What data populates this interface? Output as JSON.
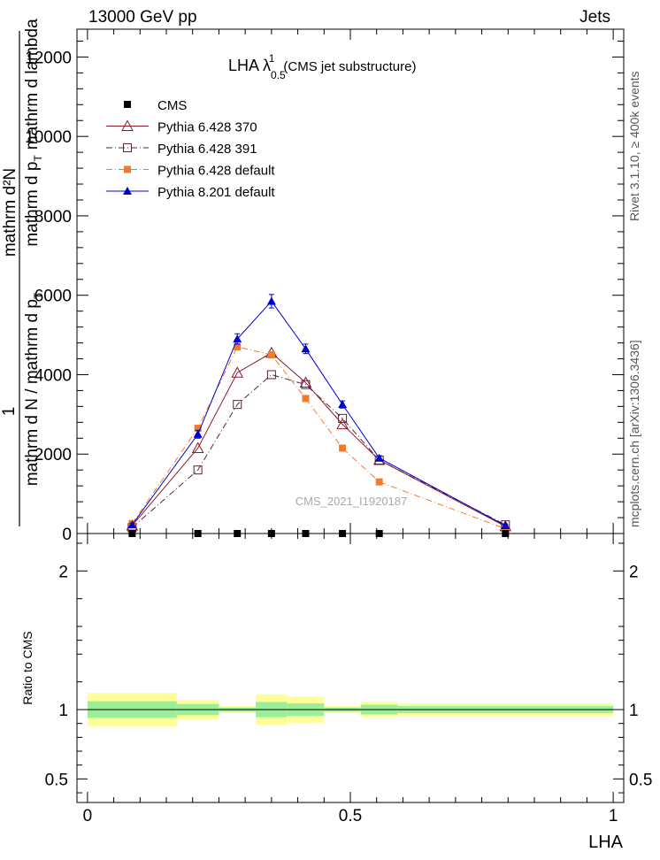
{
  "header": {
    "left": "13000 GeV pp",
    "right": "Jets"
  },
  "side_labels": {
    "rivet": "Rivet 3.1.10, ≥ 400k events",
    "mcplots": "mcplots.cern.ch [arXiv:1306.3436]"
  },
  "chart_data": [
    {
      "type": "line",
      "title": {
        "main": "LHA λ",
        "sup": "1",
        "sub": "0.5",
        "suffix": "(CMS jet substructure)"
      },
      "ylabel": {
        "prefix": "1",
        "frac_top": "mathrm d²N",
        "frac_mid": "mathrm d p",
        "frac_mid_sub": "T",
        "frac_right": "mathrm d lambda",
        "frac_bottom": "mathrm d N / mathrm d p",
        "frac_bottom_sub": "T"
      },
      "watermark": "CMS_2021_I1920187",
      "xlim": [
        -0.02,
        1.02
      ],
      "ylim": [
        0,
        12700
      ],
      "y_ticks": [
        0,
        2000,
        4000,
        6000,
        8000,
        10000,
        12000
      ],
      "y_tick_labels": [
        "0",
        "2000",
        "4000",
        "6000",
        "8000",
        "10000",
        "12000"
      ],
      "x": [
        0.085,
        0.21,
        0.285,
        0.35,
        0.415,
        0.485,
        0.555,
        0.795
      ],
      "x_err": [
        0.085,
        0.04,
        0.035,
        0.03,
        0.035,
        0.035,
        0.035,
        0.205
      ],
      "legend_position": "top-left",
      "series": [
        {
          "name": "CMS",
          "color": "#000000",
          "marker": "filled-square",
          "line": "none",
          "values": [
            0,
            0,
            0,
            0,
            0,
            0,
            0,
            0
          ]
        },
        {
          "name": "Pythia 6.428 370",
          "color": "#8b1a2b",
          "marker": "open-triangle",
          "line": "solid",
          "values": [
            200,
            2150,
            4050,
            4550,
            3800,
            2750,
            1850,
            180
          ]
        },
        {
          "name": "Pythia 6.428 391",
          "color": "#5b2335",
          "marker": "open-square",
          "line": "dashdot",
          "values": [
            150,
            1600,
            3250,
            4000,
            3750,
            2900,
            1850,
            220
          ]
        },
        {
          "name": "Pythia 6.428 default",
          "color": "#f07c2b",
          "marker": "filled-square",
          "line": "dashdot",
          "values": [
            250,
            2650,
            4700,
            4500,
            3400,
            2150,
            1300,
            120
          ]
        },
        {
          "name": "Pythia 8.201 default",
          "color": "#0000cc",
          "marker": "filled-triangle",
          "line": "solid",
          "values": [
            220,
            2500,
            4900,
            5850,
            4650,
            3250,
            1900,
            200
          ],
          "errors": [
            40,
            100,
            130,
            170,
            120,
            90,
            60,
            40
          ]
        }
      ]
    },
    {
      "type": "area",
      "ylabel": "Ratio to CMS",
      "xlabel": "LHA",
      "xlim": [
        -0.02,
        1.02
      ],
      "ylim": [
        0.33,
        2.27
      ],
      "y_ticks": [
        0.5,
        1,
        2
      ],
      "y_tick_labels": [
        "0.5",
        "1",
        "2"
      ],
      "x_ticks": [
        0,
        0.5,
        1
      ],
      "x_tick_labels": [
        "0",
        "0.5",
        "1"
      ],
      "bands": [
        {
          "x0": 0.0,
          "x1": 0.17,
          "inner": [
            0.94,
            1.06
          ],
          "outer": [
            0.88,
            1.12
          ]
        },
        {
          "x0": 0.17,
          "x1": 0.25,
          "inner": [
            0.96,
            1.04
          ],
          "outer": [
            0.93,
            1.07
          ]
        },
        {
          "x0": 0.25,
          "x1": 0.32,
          "inner": [
            0.985,
            1.015
          ],
          "outer": [
            0.975,
            1.025
          ]
        },
        {
          "x0": 0.32,
          "x1": 0.38,
          "inner": [
            0.945,
            1.055
          ],
          "outer": [
            0.89,
            1.11
          ]
        },
        {
          "x0": 0.38,
          "x1": 0.45,
          "inner": [
            0.955,
            1.045
          ],
          "outer": [
            0.905,
            1.095
          ]
        },
        {
          "x0": 0.45,
          "x1": 0.52,
          "inner": [
            0.985,
            1.015
          ],
          "outer": [
            0.975,
            1.025
          ]
        },
        {
          "x0": 0.52,
          "x1": 0.59,
          "inner": [
            0.965,
            1.035
          ],
          "outer": [
            0.945,
            1.055
          ]
        },
        {
          "x0": 0.59,
          "x1": 1.0,
          "inner": [
            0.975,
            1.025
          ],
          "outer": [
            0.955,
            1.045
          ]
        }
      ],
      "colors": {
        "inner": "#99f099",
        "outer": "#ffff99"
      }
    }
  ]
}
